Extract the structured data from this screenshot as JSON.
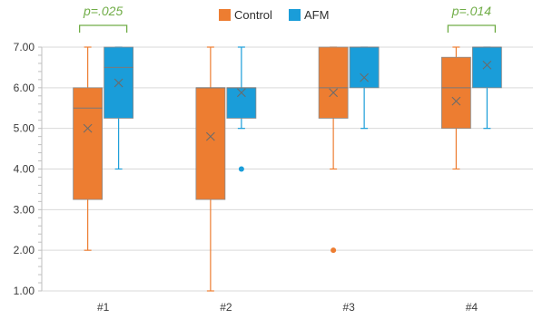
{
  "chart_data": {
    "type": "box",
    "categories": [
      "#1",
      "#2",
      "#3",
      "#4"
    ],
    "ylim": [
      1.0,
      7.0
    ],
    "yticks": [
      "1.00",
      "2.00",
      "3.00",
      "4.00",
      "5.00",
      "6.00",
      "7.00"
    ],
    "grid": true,
    "legend_position": "top",
    "series": [
      {
        "name": "Control",
        "color": "#ED7D31",
        "boxes": [
          {
            "category": "#1",
            "min": 2.0,
            "q1": 3.25,
            "median": 5.5,
            "q3": 6.0,
            "max": 7.0,
            "mean": 5.0,
            "outliers": []
          },
          {
            "category": "#2",
            "min": 1.0,
            "q1": 3.25,
            "median": 6.0,
            "q3": 6.0,
            "max": 7.0,
            "mean": 4.8,
            "outliers": []
          },
          {
            "category": "#3",
            "min": 4.0,
            "q1": 5.25,
            "median": 6.0,
            "q3": 7.0,
            "max": 7.0,
            "mean": 5.88,
            "outliers": [
              2.0
            ]
          },
          {
            "category": "#4",
            "min": 4.0,
            "q1": 5.0,
            "median": 6.0,
            "q3": 6.75,
            "max": 7.0,
            "mean": 5.67,
            "outliers": []
          }
        ]
      },
      {
        "name": "AFM",
        "color": "#1A9DD9",
        "boxes": [
          {
            "category": "#1",
            "min": 4.0,
            "q1": 5.25,
            "median": 6.5,
            "q3": 7.0,
            "max": 7.0,
            "mean": 6.12,
            "outliers": []
          },
          {
            "category": "#2",
            "min": 5.0,
            "q1": 5.25,
            "median": 6.0,
            "q3": 6.0,
            "max": 7.0,
            "mean": 5.88,
            "outliers": [
              4.0
            ]
          },
          {
            "category": "#3",
            "min": 5.0,
            "q1": 6.0,
            "median": 7.0,
            "q3": 7.0,
            "max": 7.0,
            "mean": 6.25,
            "outliers": []
          },
          {
            "category": "#4",
            "min": 5.0,
            "q1": 6.0,
            "median": 7.0,
            "q3": 7.0,
            "max": 7.0,
            "mean": 6.56,
            "outliers": []
          }
        ]
      }
    ],
    "annotations": [
      {
        "text": "p=.025",
        "category": "#1",
        "color": "#70AD47"
      },
      {
        "text": "p=.014",
        "category": "#4",
        "color": "#70AD47"
      }
    ]
  }
}
